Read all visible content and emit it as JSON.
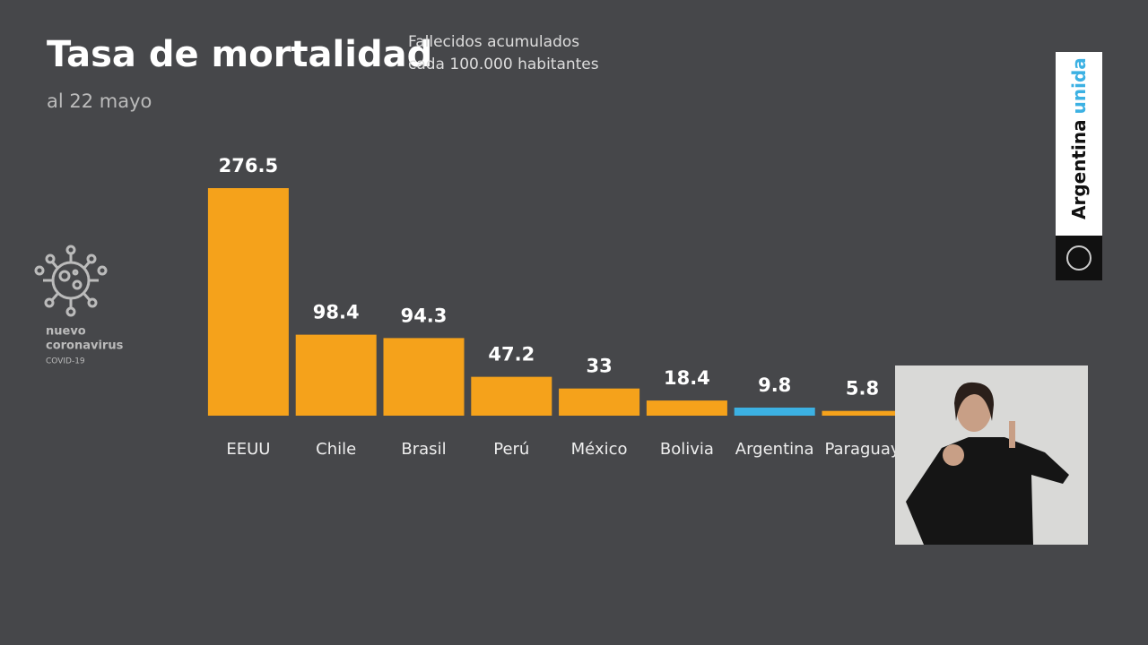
{
  "chart_data": {
    "type": "bar",
    "title": "Tasa de mortalidad",
    "subtitle": [
      "Fallecidos acumulados",
      "cada 100.000 habitantes"
    ],
    "date": "al 22 mayo",
    "categories": [
      "EEUU",
      "Chile",
      "Brasil",
      "Perú",
      "México",
      "Bolivia",
      "Argentina",
      "Paraguay"
    ],
    "values": [
      276.5,
      98.4,
      94.3,
      47.2,
      33,
      18.4,
      9.8,
      5.8
    ],
    "colors": [
      "#f5a21b",
      "#f5a21b",
      "#f5a21b",
      "#f5a21b",
      "#f5a21b",
      "#f5a21b",
      "#3cb1e3",
      "#f5a21b"
    ]
  },
  "branding": {
    "left": [
      "nuevo",
      "coronavirus",
      "COVID-19"
    ],
    "right": [
      "Argentina",
      "unida"
    ]
  }
}
